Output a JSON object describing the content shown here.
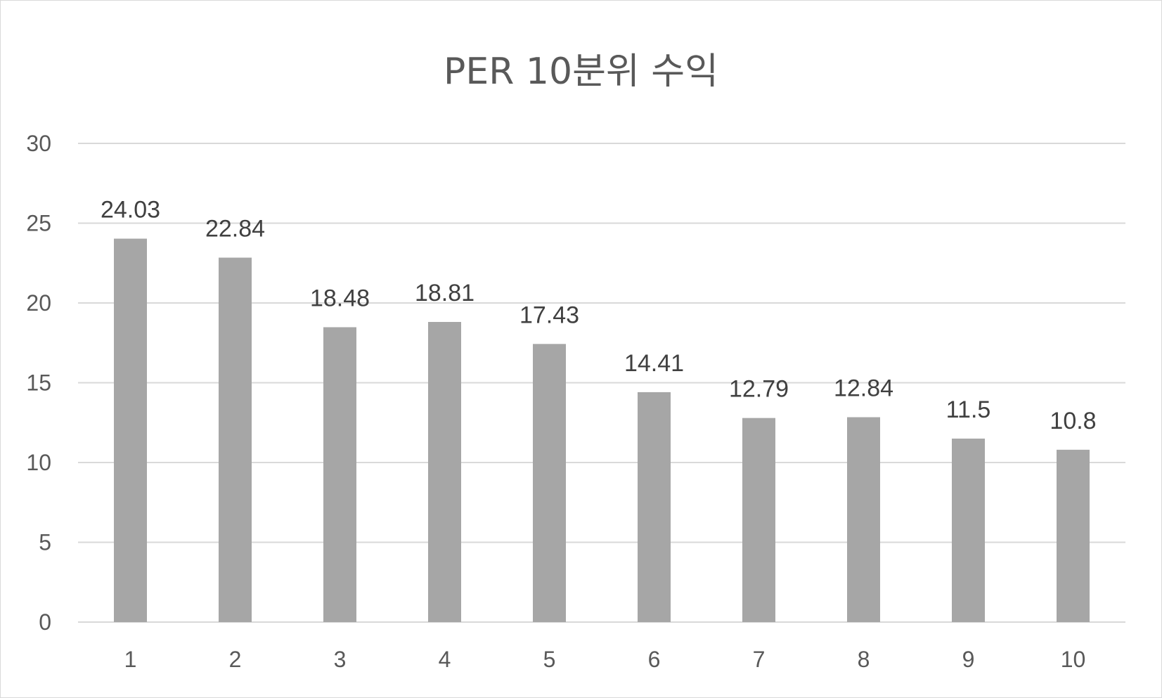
{
  "chart_data": {
    "type": "bar",
    "title": "PER 10분위 수익",
    "categories": [
      "1",
      "2",
      "3",
      "4",
      "5",
      "6",
      "7",
      "8",
      "9",
      "10"
    ],
    "values": [
      24.03,
      22.84,
      18.48,
      18.81,
      17.43,
      14.41,
      12.79,
      12.84,
      11.5,
      10.8
    ],
    "data_labels": [
      "24.03",
      "22.84",
      "18.48",
      "18.81",
      "17.43",
      "14.41",
      "12.79",
      "12.84",
      "11.5",
      "10.8"
    ],
    "y_ticks": [
      0,
      5,
      10,
      15,
      20,
      25,
      30
    ],
    "ylim": [
      0,
      30
    ],
    "grid": true,
    "legend": "none",
    "bar_color": "#a6a6a6",
    "grid_color": "#d9d9d9"
  }
}
